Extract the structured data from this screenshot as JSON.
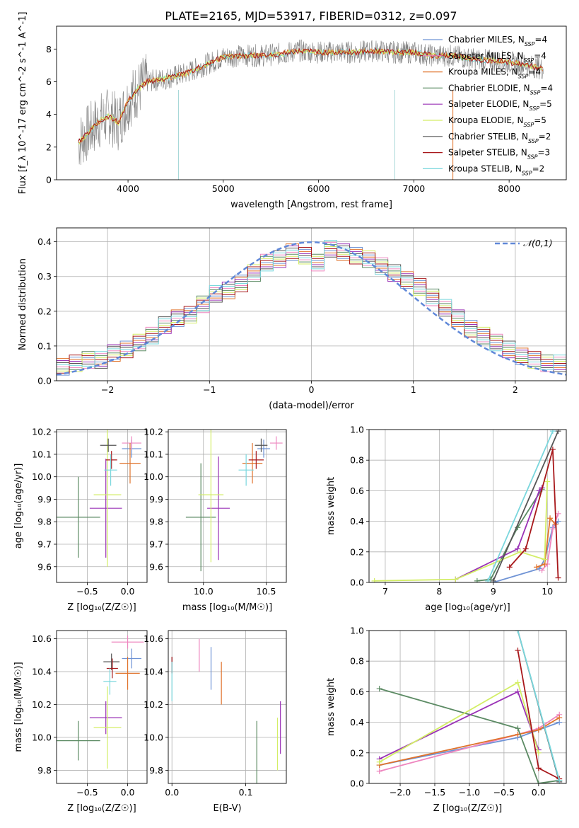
{
  "title": "PLATE=2165, MJD=53917, FIBERID=0312, z=0.097",
  "legend_entries": [
    {
      "label": "Chabrier MILES, N",
      "sub": "SSP",
      "tail": "=4",
      "color": "#6f93d5"
    },
    {
      "label": "Salpeter MILES, N",
      "sub": "SSP",
      "tail": "=4",
      "color": "#ee86bf"
    },
    {
      "label": "Kroupa MILES, N",
      "sub": "SSP",
      "tail": "=4",
      "color": "#e0732c"
    },
    {
      "label": "Chabrier ELODIE, N",
      "sub": "SSP",
      "tail": "=4",
      "color": "#5b8a63"
    },
    {
      "label": "Salpeter ELODIE, N",
      "sub": "SSP",
      "tail": "=5",
      "color": "#9a32b6"
    },
    {
      "label": "Kroupa ELODIE, N",
      "sub": "SSP",
      "tail": "=5",
      "color": "#d3ee66"
    },
    {
      "label": "Chabrier STELIB, N",
      "sub": "SSP",
      "tail": "=2",
      "color": "#555555"
    },
    {
      "label": "Salpeter STELIB, N",
      "sub": "SSP",
      "tail": "=3",
      "color": "#a8181b"
    },
    {
      "label": "Kroupa STELIB, N",
      "sub": "SSP",
      "tail": "=2",
      "color": "#7ad7dd"
    }
  ],
  "chart_data": [
    {
      "type": "line",
      "xlabel": "wavelength [Angstrom, rest frame]",
      "ylabel": "Flux [f_λ 10^-17 erg cm^-2 s^-1 A^-1]",
      "xlim": [
        3250,
        8600
      ],
      "ylim": [
        0,
        9.4
      ],
      "xticks": [
        4000,
        5000,
        6000,
        7000,
        8000
      ],
      "yticks": [
        0,
        2,
        4,
        6,
        8
      ],
      "series": [
        {
          "x": [
            3500,
            3600,
            3700,
            3800,
            3900,
            4000,
            4100,
            4200,
            4400,
            4600,
            4800,
            5000,
            5200,
            5400,
            5600,
            5800,
            6000,
            6200,
            6400,
            6600,
            6800,
            7000,
            7200,
            7400,
            7600,
            7800,
            8000,
            8200,
            8350
          ],
          "y": [
            2.4,
            3.0,
            3.6,
            3.9,
            3.5,
            4.8,
            5.5,
            6.0,
            6.2,
            6.5,
            7.0,
            7.5,
            7.6,
            7.6,
            7.7,
            7.9,
            7.8,
            7.8,
            7.8,
            7.9,
            7.8,
            7.8,
            7.6,
            7.6,
            7.4,
            7.3,
            7.2,
            7.0,
            6.8
          ]
        }
      ]
    },
    {
      "type": "bar",
      "xlabel": "(data-model)/error",
      "ylabel": "Normed distribution",
      "xlim": [
        -2.5,
        2.5
      ],
      "ylim": [
        0,
        0.44
      ],
      "xticks": [
        -2,
        -1,
        0,
        1,
        2
      ],
      "yticks": [
        0.0,
        0.1,
        0.2,
        0.3,
        0.4
      ],
      "legend": "top-right",
      "series": [
        {
          "name": "𝒩(0,1)",
          "mu": 0,
          "sigma": 1
        },
        {
          "bins": [
            -2.5,
            2.5
          ],
          "values": [
            0.04,
            0.05,
            0.06,
            0.06,
            0.08,
            0.09,
            0.11,
            0.13,
            0.16,
            0.18,
            0.19,
            0.22,
            0.25,
            0.26,
            0.28,
            0.31,
            0.34,
            0.35,
            0.37,
            0.36,
            0.34,
            0.38,
            0.37,
            0.36,
            0.35,
            0.33,
            0.31,
            0.29,
            0.27,
            0.24,
            0.21,
            0.18,
            0.15,
            0.13,
            0.11,
            0.09,
            0.07,
            0.06,
            0.05,
            0.05
          ]
        }
      ]
    },
    {
      "type": "scatter",
      "xlabel": "Z [log₁₀(Z/Z☉)]",
      "ylabel": "age  [log₁₀(age/yr)]",
      "xlim": [
        -0.88,
        0.24
      ],
      "ylim": [
        9.53,
        10.21
      ],
      "xticks": [
        -0.5,
        0.0
      ],
      "yticks": [
        9.6,
        9.7,
        9.8,
        9.9,
        10.0,
        10.1,
        10.2
      ],
      "points": [
        {
          "x": 0.05,
          "y": 10.125,
          "xerr": 0.12,
          "yerr": 0.04,
          "c": 0
        },
        {
          "x": 0.05,
          "y": 10.15,
          "xerr": 0.12,
          "yerr": 0.03,
          "c": 1
        },
        {
          "x": 0.03,
          "y": 10.06,
          "xerr": 0.13,
          "yerr": 0.09,
          "c": 2
        },
        {
          "x": -0.61,
          "y": 9.82,
          "xerr": 0.27,
          "yerr": 0.18,
          "c": 3
        },
        {
          "x": -0.27,
          "y": 9.86,
          "xerr": 0.2,
          "yerr": 0.22,
          "c": 4
        },
        {
          "x": -0.25,
          "y": 9.92,
          "xerr": 0.17,
          "yerr": 0.32,
          "c": 5
        },
        {
          "x": -0.24,
          "y": 10.14,
          "xerr": 0.1,
          "yerr": 0.03,
          "c": 6
        },
        {
          "x": -0.2,
          "y": 10.075,
          "xerr": 0.07,
          "yerr": 0.04,
          "c": 7
        },
        {
          "x": -0.21,
          "y": 10.03,
          "xerr": 0.08,
          "yerr": 0.07,
          "c": 8
        }
      ]
    },
    {
      "type": "scatter",
      "xlabel": "mass [log₁₀(M/M☉)]",
      "ylabel": "",
      "xlim": [
        9.72,
        10.66
      ],
      "ylim": [
        9.53,
        10.21
      ],
      "xticks": [
        10.0,
        10.5
      ],
      "yticks": [
        9.6,
        9.7,
        9.8,
        9.9,
        10.0,
        10.1,
        10.2
      ],
      "points": [
        {
          "x": 10.48,
          "y": 10.125,
          "xerr": 0.05,
          "yerr": 0.04,
          "c": 0
        },
        {
          "x": 10.58,
          "y": 10.15,
          "xerr": 0.05,
          "yerr": 0.03,
          "c": 1
        },
        {
          "x": 10.39,
          "y": 10.06,
          "xerr": 0.08,
          "yerr": 0.09,
          "c": 2
        },
        {
          "x": 9.98,
          "y": 9.82,
          "xerr": 0.12,
          "yerr": 0.24,
          "c": 3
        },
        {
          "x": 10.12,
          "y": 9.86,
          "xerr": 0.09,
          "yerr": 0.23,
          "c": 4
        },
        {
          "x": 10.06,
          "y": 9.92,
          "xerr": 0.1,
          "yerr": 0.3,
          "c": 5
        },
        {
          "x": 10.46,
          "y": 10.14,
          "xerr": 0.05,
          "yerr": 0.03,
          "c": 6
        },
        {
          "x": 10.42,
          "y": 10.075,
          "xerr": 0.06,
          "yerr": 0.04,
          "c": 7
        },
        {
          "x": 10.34,
          "y": 10.03,
          "xerr": 0.06,
          "yerr": 0.07,
          "c": 8
        }
      ]
    },
    {
      "type": "line",
      "xlabel": "age  [log₁₀(age/yr)]",
      "ylabel": "mass weight",
      "xlim": [
        6.7,
        10.35
      ],
      "ylim": [
        0,
        1.0
      ],
      "xticks": [
        7,
        8,
        9,
        10
      ],
      "yticks": [
        0.0,
        0.2,
        0.4,
        0.6,
        0.8,
        1.0
      ],
      "series": [
        {
          "c": 0,
          "x": [
            9.0,
            9.85,
            9.95,
            10.1,
            10.2
          ],
          "y": [
            0.0,
            0.09,
            0.15,
            0.36,
            0.4
          ]
        },
        {
          "c": 1,
          "x": [
            9.9,
            10.0,
            10.1,
            10.2
          ],
          "y": [
            0.08,
            0.12,
            0.35,
            0.45
          ]
        },
        {
          "c": 2,
          "x": [
            9.8,
            9.95,
            10.05,
            10.15
          ],
          "y": [
            0.1,
            0.12,
            0.42,
            0.38
          ]
        },
        {
          "c": 3,
          "x": [
            8.7,
            8.95,
            9.45,
            9.9
          ],
          "y": [
            0.01,
            0.02,
            0.36,
            0.61
          ]
        },
        {
          "c": 4,
          "x": [
            8.3,
            9.45,
            9.85,
            9.9
          ],
          "y": [
            0.02,
            0.22,
            0.6,
            0.62
          ]
        },
        {
          "c": 5,
          "x": [
            6.8,
            8.3,
            9.5,
            9.95,
            10.0
          ],
          "y": [
            0.01,
            0.02,
            0.2,
            0.15,
            0.66
          ]
        },
        {
          "c": 6,
          "x": [
            9.0,
            10.2
          ],
          "y": [
            0.01,
            0.99
          ]
        },
        {
          "c": 7,
          "x": [
            9.3,
            9.6,
            10.1,
            10.2
          ],
          "y": [
            0.1,
            0.22,
            0.87,
            0.03
          ]
        },
        {
          "c": 8,
          "x": [
            8.9,
            10.1
          ],
          "y": [
            0.01,
            0.99
          ]
        }
      ]
    },
    {
      "type": "scatter",
      "xlabel": "Z [log₁₀(Z/Z☉)]",
      "ylabel": "mass [log₁₀(M/M☉)]",
      "xlim": [
        -0.88,
        0.24
      ],
      "ylim": [
        9.72,
        10.65
      ],
      "xticks": [
        -0.5,
        0.0
      ],
      "yticks": [
        9.8,
        10.0,
        10.2,
        10.4,
        10.6
      ],
      "points": [
        {
          "x": 0.05,
          "y": 10.48,
          "xerr": 0.12,
          "yerr": 0.06,
          "c": 0
        },
        {
          "x": 0.0,
          "y": 10.58,
          "xerr": 0.2,
          "yerr": 0.04,
          "c": 1
        },
        {
          "x": 0.0,
          "y": 10.39,
          "xerr": 0.15,
          "yerr": 0.1,
          "c": 2
        },
        {
          "x": -0.61,
          "y": 9.98,
          "xerr": 0.27,
          "yerr": 0.12,
          "c": 3
        },
        {
          "x": -0.27,
          "y": 10.12,
          "xerr": 0.2,
          "yerr": 0.1,
          "c": 4
        },
        {
          "x": -0.25,
          "y": 10.06,
          "xerr": 0.17,
          "yerr": 0.25,
          "c": 5
        },
        {
          "x": -0.2,
          "y": 10.46,
          "xerr": 0.1,
          "yerr": 0.05,
          "c": 6
        },
        {
          "x": -0.19,
          "y": 10.42,
          "xerr": 0.07,
          "yerr": 0.06,
          "c": 7
        },
        {
          "x": -0.22,
          "y": 10.34,
          "xerr": 0.08,
          "yerr": 0.08,
          "c": 8
        }
      ]
    },
    {
      "type": "scatter",
      "xlabel": "E(B-V)",
      "ylabel": "",
      "xlim": [
        -0.005,
        0.155
      ],
      "ylim": [
        9.72,
        10.65
      ],
      "xticks": [
        0.0,
        0.1
      ],
      "yticks": [
        9.8,
        10.0,
        10.2,
        10.4,
        10.6
      ],
      "points": [
        {
          "x": 0.053,
          "y": 10.42,
          "yerr": 0.13,
          "c": 0
        },
        {
          "x": 0.037,
          "y": 10.5,
          "yerr": 0.1,
          "c": 1
        },
        {
          "x": 0.067,
          "y": 10.33,
          "yerr": 0.13,
          "c": 2
        },
        {
          "x": 0.115,
          "y": 9.88,
          "yerr": 0.22,
          "c": 3
        },
        {
          "x": 0.147,
          "y": 10.06,
          "yerr": 0.16,
          "c": 4
        },
        {
          "x": 0.143,
          "y": 9.96,
          "yerr": 0.16,
          "c": 5
        },
        {
          "x": 0.0,
          "y": 10.44,
          "yerr": 0.05,
          "c": 6
        },
        {
          "x": 0.0,
          "y": 10.44,
          "yerr": 0.05,
          "c": 7
        },
        {
          "x": 0.0,
          "y": 10.34,
          "yerr": 0.12,
          "c": 8
        }
      ]
    },
    {
      "type": "line",
      "xlabel": "Z [log₁₀(Z/Z☉)]",
      "ylabel": "mass weight",
      "xlim": [
        -2.45,
        0.4
      ],
      "ylim": [
        0,
        1.0
      ],
      "xticks": [
        -2.0,
        -1.5,
        -1.0,
        -0.5,
        0.0
      ],
      "yticks": [
        0.0,
        0.2,
        0.4,
        0.6,
        0.8,
        1.0
      ],
      "series": [
        {
          "c": 0,
          "x": [
            -2.3,
            -0.3,
            0.0,
            0.3
          ],
          "y": [
            0.12,
            0.3,
            0.35,
            0.4
          ]
        },
        {
          "c": 1,
          "x": [
            -2.3,
            -0.3,
            0.0,
            0.3
          ],
          "y": [
            0.08,
            0.32,
            0.36,
            0.45
          ]
        },
        {
          "c": 2,
          "x": [
            -2.3,
            -0.3,
            0.0,
            0.3
          ],
          "y": [
            0.12,
            0.32,
            0.35,
            0.43
          ]
        },
        {
          "c": 3,
          "x": [
            -2.3,
            -0.3,
            0.0,
            0.3
          ],
          "y": [
            0.62,
            0.36,
            0.0,
            0.02
          ]
        },
        {
          "c": 4,
          "x": [
            -2.3,
            -0.3,
            0.0
          ],
          "y": [
            0.16,
            0.6,
            0.22
          ]
        },
        {
          "c": 5,
          "x": [
            -2.3,
            -0.3,
            0.0
          ],
          "y": [
            0.14,
            0.66,
            0.2
          ]
        },
        {
          "c": 6,
          "x": [
            -0.3,
            0.3
          ],
          "y": [
            1.0,
            0.01
          ]
        },
        {
          "c": 7,
          "x": [
            -0.3,
            0.0,
            0.3
          ],
          "y": [
            0.87,
            0.1,
            0.03
          ]
        },
        {
          "c": 8,
          "x": [
            -0.3,
            0.3
          ],
          "y": [
            1.0,
            0.02
          ]
        }
      ]
    }
  ]
}
